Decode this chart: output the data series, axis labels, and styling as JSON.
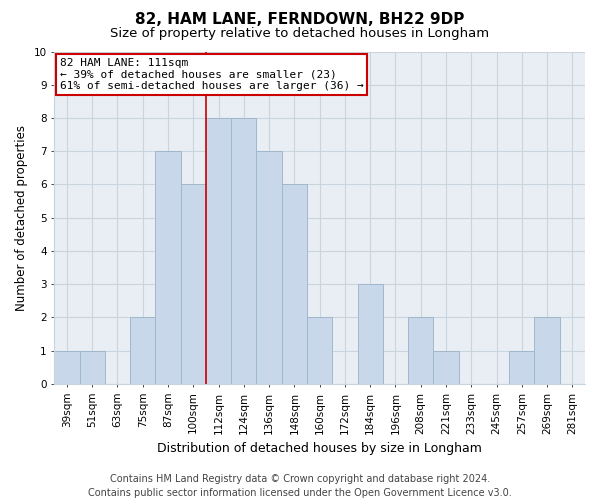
{
  "title": "82, HAM LANE, FERNDOWN, BH22 9DP",
  "subtitle": "Size of property relative to detached houses in Longham",
  "xlabel": "Distribution of detached houses by size in Longham",
  "ylabel": "Number of detached properties",
  "bins": [
    "39sqm",
    "51sqm",
    "63sqm",
    "75sqm",
    "87sqm",
    "100sqm",
    "112sqm",
    "124sqm",
    "136sqm",
    "148sqm",
    "160sqm",
    "172sqm",
    "184sqm",
    "196sqm",
    "208sqm",
    "221sqm",
    "233sqm",
    "245sqm",
    "257sqm",
    "269sqm",
    "281sqm"
  ],
  "values": [
    1,
    1,
    0,
    2,
    7,
    6,
    8,
    8,
    7,
    6,
    2,
    0,
    3,
    0,
    2,
    1,
    0,
    0,
    1,
    2,
    0
  ],
  "bar_color": "#c8d8ea",
  "bar_edge_color": "#a0b8cc",
  "highlight_line_color": "#cc0000",
  "highlight_line_index": 6,
  "ylim": [
    0,
    10
  ],
  "yticks": [
    0,
    1,
    2,
    3,
    4,
    5,
    6,
    7,
    8,
    9,
    10
  ],
  "annotation_title": "82 HAM LANE: 111sqm",
  "annotation_line2": "← 39% of detached houses are smaller (23)",
  "annotation_line3": "61% of semi-detached houses are larger (36) →",
  "annotation_box_color": "#ffffff",
  "annotation_box_edge": "#cc0000",
  "footer_line1": "Contains HM Land Registry data © Crown copyright and database right 2024.",
  "footer_line2": "Contains public sector information licensed under the Open Government Licence v3.0.",
  "grid_color": "#c8d4de",
  "background_color": "#ffffff",
  "plot_bg_color": "#e8eef4",
  "title_fontsize": 11,
  "subtitle_fontsize": 9.5,
  "xlabel_fontsize": 9,
  "ylabel_fontsize": 8.5,
  "tick_fontsize": 7.5,
  "annot_fontsize": 8,
  "footer_fontsize": 7
}
